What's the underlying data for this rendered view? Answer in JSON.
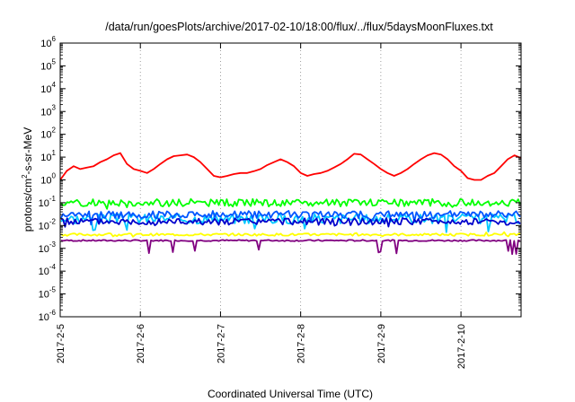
{
  "chart_data": {
    "type": "line",
    "title": "/data/run/goesPlots/archive/2017-02-10/18:00/flux/../flux/5daysMoonFluxes.txt",
    "xlabel": "Coordinated Universal Time (UTC)",
    "ylabel": {
      "prefix": "protons/cm",
      "sup": "2",
      "suffix": "-s-sr-MeV"
    },
    "yscale": "log",
    "ylim": [
      1e-06,
      1000000.0
    ],
    "ytick_values": [
      1e-06,
      1e-05,
      0.0001,
      0.001,
      0.01,
      0.1,
      1.0,
      10.0,
      100.0,
      1000.0,
      10000.0,
      100000.0,
      1000000.0
    ],
    "ytick_base": "10",
    "ytick_exponents": [
      "-6",
      "-5",
      "-4",
      "-3",
      "-2",
      "-1",
      "0",
      "1",
      "2",
      "3",
      "4",
      "5",
      "6"
    ],
    "xlim": [
      "2017-02-05T00:00",
      "2017-02-10T18:00"
    ],
    "xtick_labels": [
      "2017-2-5",
      "2017-2-6",
      "2017-2-7",
      "2017-2-8",
      "2017-2-9",
      "2017-2-10"
    ],
    "xtick_values": [
      "2017-02-05",
      "2017-02-06",
      "2017-02-07",
      "2017-02-08",
      "2017-02-09",
      "2017-02-10"
    ],
    "grid": "vertical dotted at x ticks",
    "legend": "none",
    "series": [
      {
        "color": "#ff0000",
        "x": [
          "2017-02-05T00:00",
          "2017-02-05T02:00",
          "2017-02-05T04:00",
          "2017-02-05T06:00",
          "2017-02-05T08:00",
          "2017-02-05T10:00",
          "2017-02-05T12:00",
          "2017-02-05T14:00",
          "2017-02-05T16:00",
          "2017-02-05T18:00",
          "2017-02-05T20:00",
          "2017-02-05T22:00",
          "2017-02-06T00:00",
          "2017-02-06T02:00",
          "2017-02-06T04:00",
          "2017-02-06T06:00",
          "2017-02-06T08:00",
          "2017-02-06T10:00",
          "2017-02-06T12:00",
          "2017-02-06T14:00",
          "2017-02-06T16:00",
          "2017-02-06T18:00",
          "2017-02-06T20:00",
          "2017-02-06T22:00",
          "2017-02-07T00:00",
          "2017-02-07T02:00",
          "2017-02-07T04:00",
          "2017-02-07T06:00",
          "2017-02-07T08:00",
          "2017-02-07T10:00",
          "2017-02-07T12:00",
          "2017-02-07T14:00",
          "2017-02-07T16:00",
          "2017-02-07T18:00",
          "2017-02-07T20:00",
          "2017-02-07T22:00",
          "2017-02-08T00:00",
          "2017-02-08T02:00",
          "2017-02-08T04:00",
          "2017-02-08T06:00",
          "2017-02-08T08:00",
          "2017-02-08T10:00",
          "2017-02-08T12:00",
          "2017-02-08T14:00",
          "2017-02-08T16:00",
          "2017-02-08T18:00",
          "2017-02-08T20:00",
          "2017-02-08T22:00",
          "2017-02-09T00:00",
          "2017-02-09T02:00",
          "2017-02-09T04:00",
          "2017-02-09T06:00",
          "2017-02-09T08:00",
          "2017-02-09T10:00",
          "2017-02-09T12:00",
          "2017-02-09T14:00",
          "2017-02-09T16:00",
          "2017-02-09T18:00",
          "2017-02-09T20:00",
          "2017-02-09T22:00",
          "2017-02-10T00:00",
          "2017-02-10T02:00",
          "2017-02-10T04:00",
          "2017-02-10T06:00",
          "2017-02-10T08:00",
          "2017-02-10T10:00",
          "2017-02-10T12:00",
          "2017-02-10T14:00",
          "2017-02-10T16:00",
          "2017-02-10T18:00"
        ],
        "y": [
          1.0,
          2.5,
          4.0,
          3.0,
          3.5,
          4.0,
          6.0,
          8.0,
          12,
          15,
          5.0,
          3.0,
          2.5,
          2.0,
          3.0,
          5.0,
          8.0,
          11,
          12,
          13,
          10,
          6.0,
          3.0,
          1.5,
          1.3,
          1.5,
          1.8,
          2.0,
          2.0,
          2.4,
          3.0,
          4.5,
          6.0,
          8.0,
          6.0,
          4.0,
          2.0,
          1.5,
          1.8,
          2.0,
          2.5,
          3.5,
          5.0,
          8.0,
          14,
          13,
          8.0,
          5.0,
          3.0,
          2.0,
          1.5,
          2.0,
          3.0,
          5.0,
          8.0,
          12,
          15,
          13,
          8.0,
          4.0,
          2.5,
          1.2,
          1.0,
          1.0,
          1.5,
          2.0,
          4.0,
          8.0,
          12,
          9.0
        ]
      },
      {
        "color": "#00ff00",
        "values_range": [
          0.05,
          0.2
        ],
        "typical": 0.1
      },
      {
        "color": "#00c8ff",
        "values_range": [
          0.005,
          0.05
        ],
        "typical": 0.02
      },
      {
        "color": "#0055ff",
        "values_range": [
          0.01,
          0.06
        ],
        "typical": 0.03
      },
      {
        "color": "#0000cc",
        "values_range": [
          0.008,
          0.03
        ],
        "typical": 0.015
      },
      {
        "color": "#ffff00",
        "values_range": [
          0.003,
          0.005
        ],
        "typical": 0.004
      },
      {
        "color": "#800080",
        "values_range": [
          0.0005,
          0.0025
        ],
        "typical": 0.0022
      }
    ]
  }
}
